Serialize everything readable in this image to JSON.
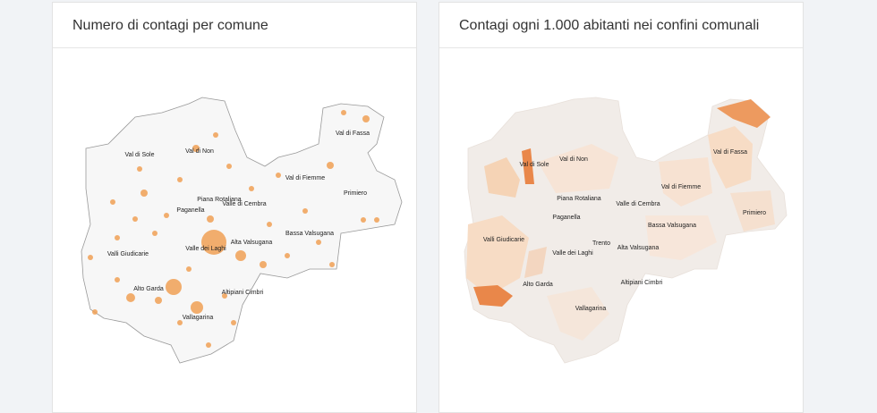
{
  "panels": [
    {
      "title": "Numero di contagi per comune",
      "labels": [
        "Val di Sole",
        "Val di Non",
        "Val di Fassa",
        "Val di Fiemme",
        "Primiero",
        "Piana Rotaliana",
        "Valle di Cembra",
        "Paganella",
        "Valle dei Laghi",
        "Alta Valsugana",
        "Bassa Valsugana",
        "Valli Giudicarie",
        "Alto Garda",
        "Altipiani Cimbri",
        "Vallagarina"
      ]
    },
    {
      "title": "Contagi ogni 1.000 abitanti nei confini comunali",
      "labels": [
        "Val di Sole",
        "Val di Non",
        "Val di Fassa",
        "Val di Fiemme",
        "Primiero",
        "Piana Rotaliana",
        "Valle di Cembra",
        "Paganella",
        "Trento",
        "Valle dei Laghi",
        "Alta Valsugana",
        "Bassa Valsugana",
        "Valli Giudicarie",
        "Alto Garda",
        "Altipiani Cimbri",
        "Vallagarina"
      ]
    }
  ]
}
